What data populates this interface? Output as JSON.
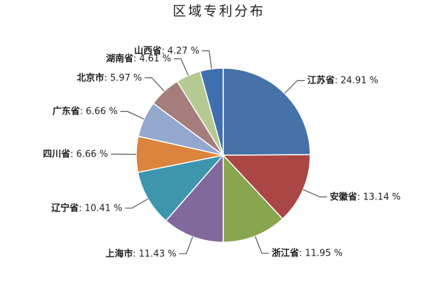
{
  "chart_data": {
    "type": "pie",
    "title": "区域专利分布",
    "categories": [
      "江苏省",
      "安徽省",
      "浙江省",
      "上海市",
      "辽宁省",
      "四川省",
      "广东省",
      "北京市",
      "湖南省",
      "山西省"
    ],
    "values": [
      24.91,
      13.14,
      11.95,
      11.43,
      10.41,
      6.66,
      6.66,
      5.97,
      4.61,
      4.27
    ],
    "value_labels": [
      "24.91 %",
      "13.14 %",
      "11.95 %",
      "11.43 %",
      "10.41 %",
      "6.66 %",
      "6.66 %",
      "5.97 %",
      "4.61 %",
      "4.27 %"
    ],
    "label_separator": ":",
    "colors": [
      "#4572a7",
      "#aa4643",
      "#89a54e",
      "#80699b",
      "#3d96ae",
      "#db843d",
      "#92a8cd",
      "#a47d7c",
      "#b5ca92",
      "#3f6fb0"
    ]
  }
}
